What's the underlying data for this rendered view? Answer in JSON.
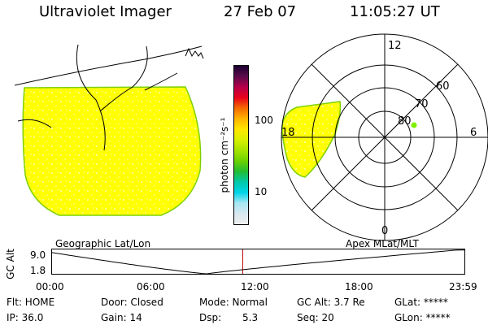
{
  "header": {
    "title": "Ultraviolet Imager",
    "date": "27 Feb 07",
    "time": "11:05:27 UT"
  },
  "colorbar": {
    "unit_label": "photon cm⁻²s⁻¹",
    "ticks": [
      "100",
      "10"
    ],
    "colors": [
      "#1a0030",
      "#5a0a4a",
      "#b4004a",
      "#e8001c",
      "#f46a00",
      "#ffb400",
      "#ffe600",
      "#d8f000",
      "#a6e400",
      "#6cd200",
      "#22bc34",
      "#00c8a8",
      "#00d4e8",
      "#a8e8f4",
      "#d8e8f0",
      "#eeeeee"
    ]
  },
  "polar": {
    "rings": [
      "80",
      "70",
      "60"
    ],
    "clock": [
      "12",
      "18",
      "6",
      "0"
    ]
  },
  "labels": {
    "geo": "Geographic Lat/Lon",
    "apex": "Apex MLat/MLT",
    "axis_title": "GC Alt",
    "y_ticks": [
      "9.0",
      "1.8"
    ],
    "x_ticks": [
      "00:00",
      "06:00",
      "12:00",
      "18:00",
      "23:59"
    ]
  },
  "info": {
    "row1": [
      "Flt: HOME",
      "Door: Closed",
      "Mode: Normal",
      "GC Alt: 3.7 Re",
      "GLat: *****"
    ],
    "row2": [
      "IP: 36.0",
      "Gain: 14",
      "Dsp:",
      "5.3",
      "Seq: 20",
      "GLon: *****"
    ]
  },
  "colors": {
    "aurora": "#ffff00",
    "aurora_edge": "#7ed000",
    "marker": "#7ef000",
    "time_marker": "#c00000"
  },
  "altitude_track": {
    "y_range": [
      1.8,
      9.0
    ],
    "x_range_hours": [
      0,
      23.98
    ],
    "current_time_hours": 11.09
  }
}
